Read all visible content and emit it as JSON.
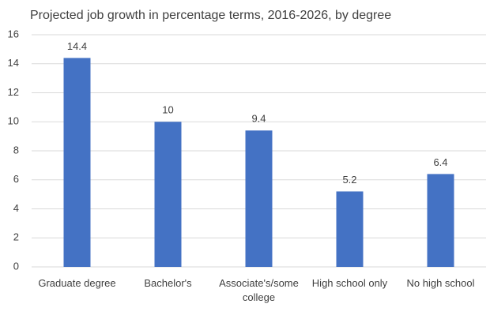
{
  "chart_data": {
    "type": "bar",
    "title": "Projected job growth in percentage terms, 2016-2026, by degree",
    "categories": [
      "Graduate degree",
      "Bachelor's",
      "Associate's/some college",
      "High school only",
      "No high school"
    ],
    "values": [
      14.4,
      10,
      9.4,
      5.2,
      6.4
    ],
    "color": "#4472c4",
    "ylim": [
      0,
      16
    ],
    "yticks": [
      0,
      2,
      4,
      6,
      8,
      10,
      12,
      14,
      16
    ],
    "grid": true
  }
}
